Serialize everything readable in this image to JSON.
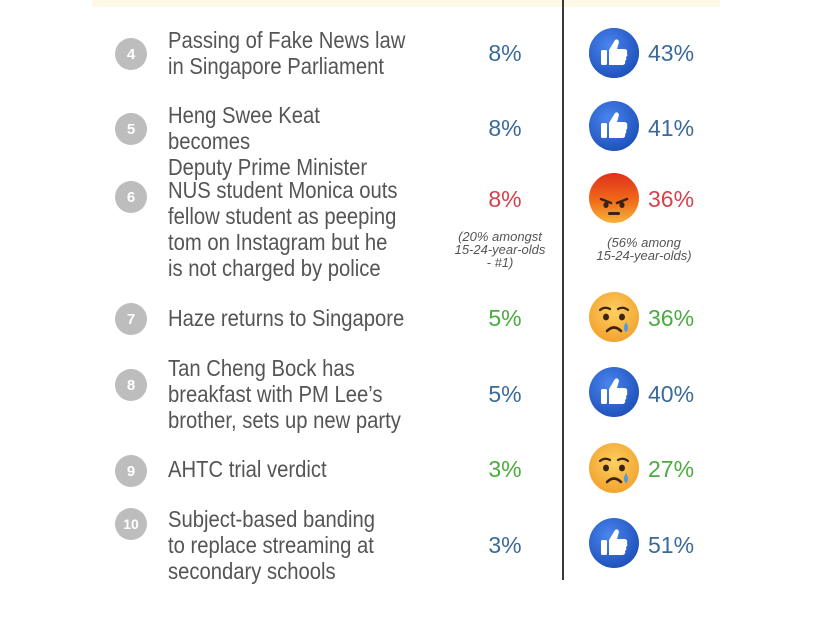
{
  "colors": {
    "blue": "#3b6a9a",
    "red": "#d8404a",
    "green": "#4aab3e",
    "like_blue": "#2f66d3",
    "angry_top": "#e23b12",
    "sad_yellow": "#f7b93a"
  },
  "rows": [
    {
      "rank": "4",
      "lines": [
        "Passing of Fake News law",
        "in Singapore Parliament"
      ],
      "pct": "8%",
      "reaction_icon": "like-icon",
      "reaction_pct": "43%"
    },
    {
      "rank": "5",
      "lines": [
        "Heng Swee Keat becomes",
        "Deputy Prime Minister"
      ],
      "pct": "8%",
      "reaction_icon": "like-icon",
      "reaction_pct": "41%"
    },
    {
      "rank": "6",
      "lines": [
        "NUS student Monica outs",
        "fellow student as peeping",
        "tom on Instagram but he",
        "is not charged by police"
      ],
      "pct": "8%",
      "pct_note": [
        "(20% amongst",
        "15-24-year-olds",
        "- #1)"
      ],
      "reaction_icon": "angry-icon",
      "reaction_pct": "36%",
      "reaction_note": [
        "(56% among",
        "15-24-year-olds)"
      ]
    },
    {
      "rank": "7",
      "lines": [
        "Haze returns to Singapore"
      ],
      "pct": "5%",
      "reaction_icon": "sad-icon",
      "reaction_pct": "36%"
    },
    {
      "rank": "8",
      "lines": [
        "Tan Cheng Bock has",
        "breakfast with PM Lee’s",
        "brother, sets up new party"
      ],
      "pct": "5%",
      "reaction_icon": "like-icon",
      "reaction_pct": "40%"
    },
    {
      "rank": "9",
      "lines": [
        "AHTC trial verdict"
      ],
      "pct": "3%",
      "reaction_icon": "sad-icon",
      "reaction_pct": "27%"
    },
    {
      "rank": "10",
      "lines": [
        "Subject-based banding",
        "to replace streaming at",
        "secondary schools"
      ],
      "pct": "3%",
      "reaction_icon": "like-icon",
      "reaction_pct": "51%"
    }
  ]
}
